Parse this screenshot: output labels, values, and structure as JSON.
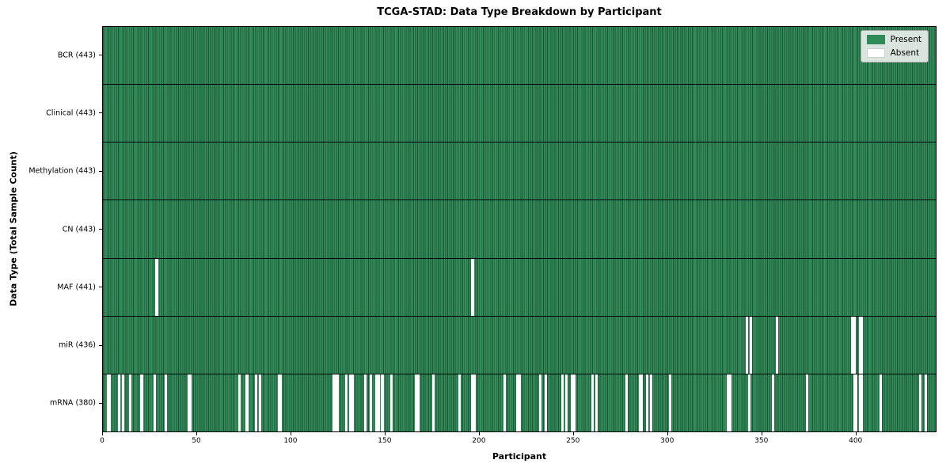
{
  "title": "TCGA-STAD: Data Type Breakdown by Participant",
  "xlabel": "Participant",
  "ylabel": "Data Type (Total Sample Count)",
  "legend": {
    "present_label": "Present",
    "absent_label": "Absent"
  },
  "colors": {
    "present": "#2e8b57",
    "absent": "#ffffff",
    "axis": "#000000",
    "legend_bg": "#f5f5f5"
  },
  "chart_data": {
    "type": "heatmap",
    "title": "TCGA-STAD: Data Type Breakdown by Participant",
    "xlabel": "Participant",
    "ylabel": "Data Type (Total Sample Count)",
    "legend_entries": [
      "Present",
      "Absent"
    ],
    "legend_position": "upper right",
    "n_participants": 443,
    "xlim": [
      0,
      443
    ],
    "x_ticks": [
      0,
      50,
      100,
      150,
      200,
      250,
      300,
      350,
      400
    ],
    "rows": [
      {
        "name": "BCR",
        "label": "BCR (443)",
        "present_count": 443,
        "absent_participants": []
      },
      {
        "name": "Clinical",
        "label": "Clinical (443)",
        "present_count": 443,
        "absent_participants": []
      },
      {
        "name": "Methylation",
        "label": "Methylation (443)",
        "present_count": 443,
        "absent_participants": []
      },
      {
        "name": "CN",
        "label": "CN (443)",
        "present_count": 443,
        "absent_participants": []
      },
      {
        "name": "MAF",
        "label": "MAF (441)",
        "present_count": 441,
        "absent_participants": [
          28,
          196
        ]
      },
      {
        "name": "miR",
        "label": "miR (436)",
        "present_count": 436,
        "absent_participants": [
          342,
          344,
          358,
          398,
          399,
          402,
          403
        ]
      },
      {
        "name": "mRNA",
        "label": "mRNA (380)",
        "present_count": 380,
        "absent_participants": [
          2,
          3,
          8,
          10,
          14,
          20,
          27,
          33,
          45,
          46,
          72,
          76,
          81,
          83,
          93,
          94,
          122,
          123,
          124,
          129,
          131,
          132,
          139,
          142,
          145,
          146,
          148,
          153,
          166,
          167,
          175,
          189,
          196,
          197,
          213,
          220,
          221,
          232,
          235,
          244,
          246,
          249,
          250,
          260,
          262,
          278,
          285,
          286,
          289,
          291,
          301,
          332,
          333,
          343,
          356,
          374,
          399,
          400,
          402,
          403,
          413,
          434,
          437
        ]
      }
    ]
  }
}
